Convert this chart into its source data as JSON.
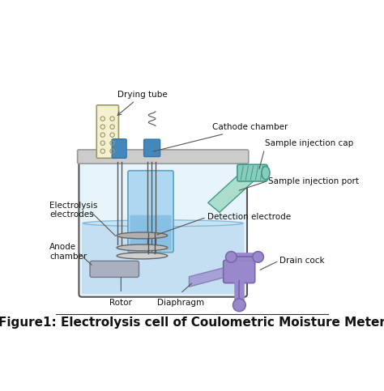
{
  "title": "Figure1: Electrolysis cell of Coulometric Moisture Meter",
  "title_fontsize": 11,
  "labels": {
    "drying_tube": "Drying tube",
    "cathode_chamber": "Cathode chamber",
    "sample_injection_cap": "Sample injection cap",
    "sample_injection_port": "Sample injection port",
    "detection_electrode": "Detection electrode",
    "drain_cock": "Drain cock",
    "electrolysis_electrodes": "Electrolysis\nelectrodes",
    "anode_chamber": "Anode\nchamber",
    "rotor": "Rotor",
    "diaphragm": "Diaphragm"
  },
  "colors": {
    "bg_color": "#ffffff",
    "vessel_outline": "#555555",
    "vessel_fill": "#e8f4fb",
    "vessel_top_plate": "#cccccc",
    "liquid_fill": "#b8d8ee",
    "cathode_inner": "#a8d4f0",
    "cathode_inner_outline": "#5599bb",
    "cathode_liquid": "#7ab8e0",
    "drying_tube_fill": "#f5f0d0",
    "drying_tube_outline": "#999966",
    "blue_connector": "#4488bb",
    "blue_connector_outline": "#3377aa",
    "sample_cap_fill": "#88ccbb",
    "sample_cap_outline": "#44998a",
    "injection_port_fill": "#aaddcc",
    "drain_cock_fill": "#9988cc",
    "drain_cock_outline": "#7766aa",
    "electrode_plate_dark": "#b0b0b0",
    "electrode_plate_light": "#c0c0c0",
    "anode_fill": "#aab0c0",
    "anode_outline": "#777788",
    "wire_color": "#555555",
    "annotation_line": "#555555",
    "text_color": "#111111",
    "liquid_surface": "#7ab0d4",
    "liquid_surface_fill": "#c8e4f4"
  }
}
